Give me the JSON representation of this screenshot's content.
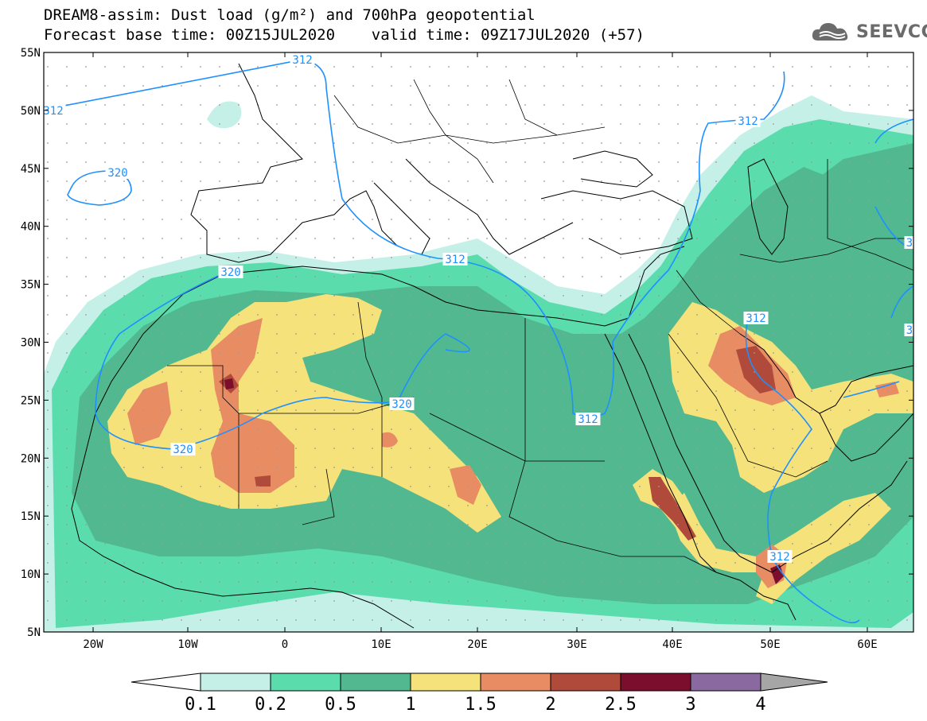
{
  "title": {
    "line1": "DREAM8-assim: Dust load (g/m²) and 700hPa geopotential",
    "line2": "Forecast base time: 00Z15JUL2020    valid time: 09Z17JUL2020 (+57)"
  },
  "logo": {
    "text": "SEEVCCC",
    "icon": "cloud-icon"
  },
  "axes": {
    "lat_ticks": [
      "55N",
      "50N",
      "45N",
      "40N",
      "35N",
      "30N",
      "25N",
      "20N",
      "15N",
      "10N",
      "5N"
    ],
    "lon_ticks": [
      "20W",
      "10W",
      "0",
      "10E",
      "20E",
      "30E",
      "40E",
      "50E",
      "60E"
    ]
  },
  "contours": {
    "labels": [
      "312",
      "312",
      "312",
      "312",
      "312",
      "312",
      "312",
      "320",
      "320",
      "320",
      "320",
      "3",
      "3"
    ]
  },
  "colorbar": {
    "labels": [
      "0.1",
      "0.2",
      "0.5",
      "1",
      "1.5",
      "2",
      "2.5",
      "3",
      "4"
    ],
    "colors": [
      "#c4f0e8",
      "#5bdcac",
      "#52b890",
      "#f5e27a",
      "#e88c64",
      "#b04a3a",
      "#7a0e2c",
      "#8a68a0"
    ],
    "low_color": "#ffffff",
    "high_color": "#a6a6a6"
  },
  "palette": {
    "coast": "#000000",
    "contour": "#1e90ff"
  }
}
